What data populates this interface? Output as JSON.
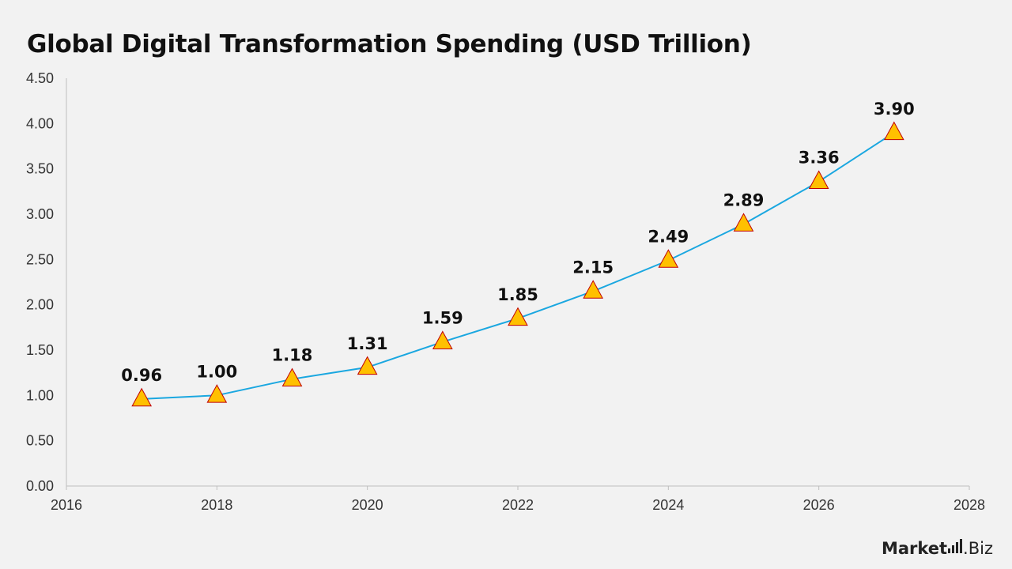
{
  "chart_data": {
    "type": "line",
    "title": "Global Digital Transformation Spending (USD Trillion)",
    "xlabel": "",
    "ylabel": "",
    "x": [
      2017,
      2018,
      2019,
      2020,
      2021,
      2022,
      2023,
      2024,
      2025,
      2026,
      2027
    ],
    "series": [
      {
        "values": [
          0.96,
          1.0,
          1.18,
          1.31,
          1.59,
          1.85,
          2.15,
          2.49,
          2.89,
          3.36,
          3.9
        ],
        "data_labels": [
          "0.96",
          "1.00",
          "1.18",
          "1.31",
          "1.59",
          "1.85",
          "2.15",
          "2.49",
          "2.89",
          "3.36",
          "3.90"
        ]
      }
    ],
    "xlim": [
      2016,
      2028
    ],
    "ylim": [
      0,
      4.5
    ],
    "x_ticks": [
      "2016",
      "2018",
      "2020",
      "2022",
      "2024",
      "2026",
      "2028"
    ],
    "y_ticks": [
      "0.00",
      "0.50",
      "1.00",
      "1.50",
      "2.00",
      "2.50",
      "3.00",
      "3.50",
      "4.00",
      "4.50"
    ],
    "grid": false,
    "legend": "none",
    "colors": {
      "line": "#1aa7e0",
      "marker_fill": "#ffc000",
      "marker_stroke": "#c00000",
      "axis": "#bfbfbf"
    },
    "marker": "triangle"
  },
  "watermark": {
    "brand_bold": "Market",
    "brand_rest": ".Biz"
  }
}
